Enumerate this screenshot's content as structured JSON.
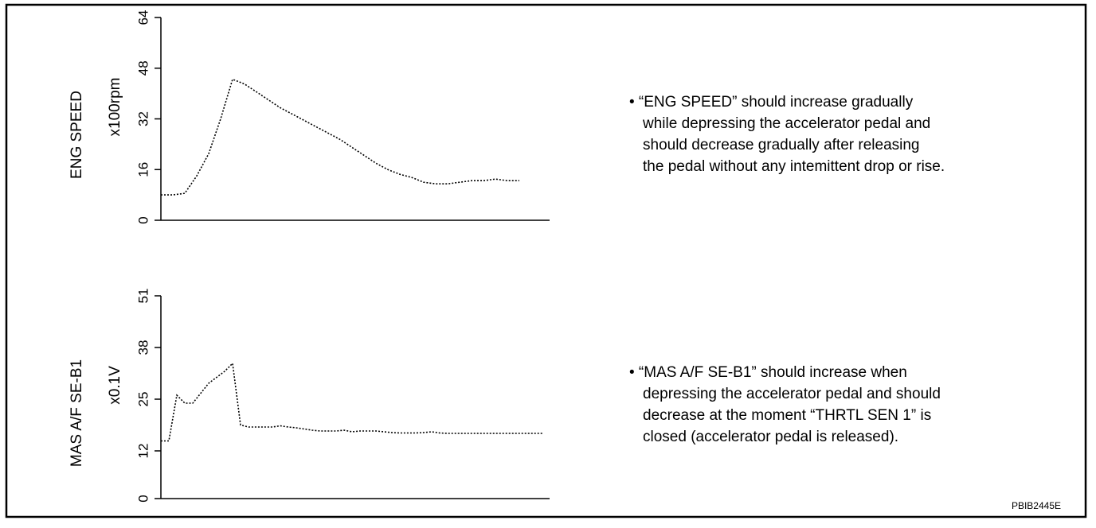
{
  "chart_data": [
    {
      "type": "line",
      "y_label": "ENG SPEED",
      "unit_label": "x100rpm",
      "color": "#000000",
      "ylim": [
        0,
        64
      ],
      "yticks": [
        0,
        16,
        32,
        48,
        64
      ],
      "values": [
        8,
        8,
        8.5,
        14,
        21,
        32,
        44.5,
        43,
        40.5,
        38,
        35.5,
        33.5,
        31.5,
        29.5,
        27.5,
        25.5,
        23,
        20.5,
        18,
        16,
        14.5,
        13.5,
        12,
        11.5,
        11.5,
        12,
        12.5,
        12.5,
        13,
        12.5,
        12.5
      ],
      "annotation": [
        "• “ENG SPEED” should increase gradually",
        "while depressing the accelerator pedal and",
        "should decrease gradually after releasing",
        "the pedal without any intemittent drop or rise."
      ]
    },
    {
      "type": "line",
      "y_label": "MAS A/F SE-B1",
      "unit_label": "x0.1V",
      "color": "#000000",
      "ylim": [
        0,
        51
      ],
      "yticks": [
        0,
        12,
        25,
        38,
        51
      ],
      "values": [
        14.5,
        14.5,
        26,
        24,
        24,
        26.5,
        29,
        30.5,
        32,
        34,
        18.5,
        18,
        18,
        18,
        18,
        18.3,
        18,
        17.8,
        17.5,
        17.2,
        17,
        17,
        17,
        17.2,
        16.8,
        17,
        17,
        17,
        16.8,
        16.6,
        16.5,
        16.5,
        16.5,
        16.6,
        16.8,
        16.5,
        16.4,
        16.4,
        16.4,
        16.4,
        16.4,
        16.4,
        16.4,
        16.4,
        16.4,
        16.4,
        16.4,
        16.4,
        16.4
      ],
      "annotation": [
        "• “MAS A/F SE-B1” should increase when",
        "depressing the accelerator pedal and  should",
        "decrease at the moment “THRTL SEN 1” is",
        "closed (accelerator pedal is released)."
      ]
    }
  ],
  "figure_id": "PBIB2445E"
}
